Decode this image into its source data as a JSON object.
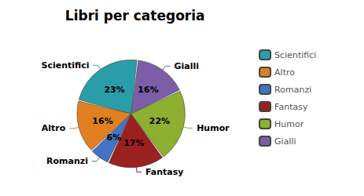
{
  "chart_data": {
    "type": "pie",
    "title": "Libri per categoria",
    "categories": [
      "Scientifici",
      "Altro",
      "Romanzi",
      "Fantasy",
      "Humor",
      "Gialli"
    ],
    "values": [
      23,
      16,
      6,
      17,
      22,
      16
    ],
    "value_labels": [
      "23%",
      "16%",
      "6%",
      "17%",
      "22%",
      "16%"
    ],
    "colors": [
      "#2a9ea8",
      "#e08020",
      "#4472c4",
      "#9b2020",
      "#8db030",
      "#7b5ea7"
    ],
    "data_labels": true,
    "legend": "right"
  }
}
